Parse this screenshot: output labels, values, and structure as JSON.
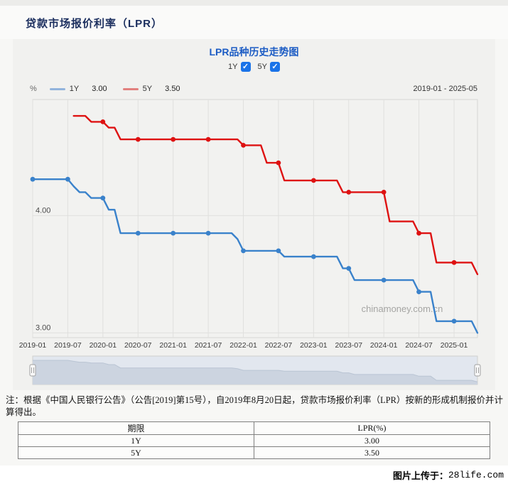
{
  "page": {
    "title": "贷款市场报价利率（LPR）",
    "uploader_prefix": "图片上传于：",
    "uploader_site": "28life.com"
  },
  "panel": {
    "chart_title": "LPR品种历史走势图",
    "toggles": [
      {
        "label": "1Y",
        "checked": true
      },
      {
        "label": "5Y",
        "checked": true
      }
    ],
    "unit_label": "%",
    "range_label": "2019-01 - 2025-05",
    "legend": [
      {
        "name": "1Y",
        "value": "3.00",
        "swatch": "#92b4dc"
      },
      {
        "name": "5Y",
        "value": "3.50",
        "swatch": "#e2807e"
      }
    ]
  },
  "note": {
    "text": "注：根据《中国人民银行公告》（公告[2019]第15号），自2019年8月20日起，贷款市场报价利率（LPR）按新的形成机制报价并计算得出。"
  },
  "table": {
    "headers": [
      "期限",
      "LPR(%)"
    ],
    "rows": [
      [
        "1Y",
        "3.00"
      ],
      [
        "5Y",
        "3.50"
      ]
    ]
  },
  "chart_data": {
    "type": "line",
    "title": "LPR品种历史走势图",
    "x_start": "2019-01",
    "x_end": "2025-05",
    "months_total": 77,
    "x_tick_labels": [
      "2019-01",
      "2019-07",
      "2020-01",
      "2020-07",
      "2021-01",
      "2021-07",
      "2022-01",
      "2022-07",
      "2023-01",
      "2023-07",
      "2024-01",
      "2024-07",
      "2025-01"
    ],
    "x_tick_month_indices": [
      0,
      6,
      12,
      18,
      24,
      30,
      36,
      42,
      48,
      54,
      60,
      66,
      72
    ],
    "ylabel": "%",
    "y_gridlines": [
      3.0,
      4.0
    ],
    "y_tick_labels": [
      "3.00",
      "4.00"
    ],
    "ylim": [
      2.96,
      4.99
    ],
    "marker_every_months": 6,
    "watermark": "chinamoney.com.cn",
    "legend_position": "top",
    "grid": true,
    "series": [
      {
        "name": "1Y",
        "color": "#3a82cb",
        "latest": 3.0,
        "monthly_values": [
          4.31,
          4.31,
          4.31,
          4.31,
          4.31,
          4.31,
          4.31,
          4.25,
          4.2,
          4.2,
          4.15,
          4.15,
          4.15,
          4.05,
          4.05,
          3.85,
          3.85,
          3.85,
          3.85,
          3.85,
          3.85,
          3.85,
          3.85,
          3.85,
          3.85,
          3.85,
          3.85,
          3.85,
          3.85,
          3.85,
          3.85,
          3.85,
          3.85,
          3.85,
          3.85,
          3.8,
          3.7,
          3.7,
          3.7,
          3.7,
          3.7,
          3.7,
          3.7,
          3.65,
          3.65,
          3.65,
          3.65,
          3.65,
          3.65,
          3.65,
          3.65,
          3.65,
          3.65,
          3.55,
          3.55,
          3.45,
          3.45,
          3.45,
          3.45,
          3.45,
          3.45,
          3.45,
          3.45,
          3.45,
          3.45,
          3.45,
          3.35,
          3.35,
          3.35,
          3.1,
          3.1,
          3.1,
          3.1,
          3.1,
          3.1,
          3.1,
          3.0
        ]
      },
      {
        "name": "5Y",
        "color": "#de1212",
        "latest": 3.5,
        "monthly_values": [
          null,
          null,
          null,
          null,
          null,
          null,
          null,
          4.85,
          4.85,
          4.85,
          4.8,
          4.8,
          4.8,
          4.75,
          4.75,
          4.65,
          4.65,
          4.65,
          4.65,
          4.65,
          4.65,
          4.65,
          4.65,
          4.65,
          4.65,
          4.65,
          4.65,
          4.65,
          4.65,
          4.65,
          4.65,
          4.65,
          4.65,
          4.65,
          4.65,
          4.65,
          4.6,
          4.6,
          4.6,
          4.6,
          4.45,
          4.45,
          4.45,
          4.3,
          4.3,
          4.3,
          4.3,
          4.3,
          4.3,
          4.3,
          4.3,
          4.3,
          4.3,
          4.2,
          4.2,
          4.2,
          4.2,
          4.2,
          4.2,
          4.2,
          4.2,
          3.95,
          3.95,
          3.95,
          3.95,
          3.95,
          3.85,
          3.85,
          3.85,
          3.6,
          3.6,
          3.6,
          3.6,
          3.6,
          3.6,
          3.6,
          3.5
        ]
      }
    ]
  }
}
